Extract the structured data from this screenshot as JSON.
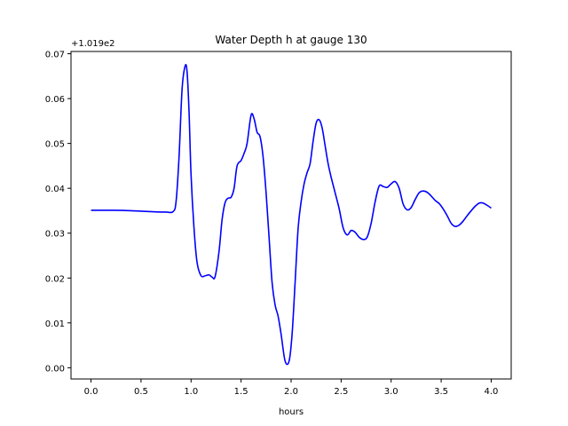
{
  "chart_data": {
    "type": "line",
    "title": "Water Depth h at gauge 130",
    "xlabel": "hours",
    "ylabel": "",
    "offset_label": "+1.019e2",
    "xlim": [
      -0.2,
      4.2
    ],
    "ylim": [
      -0.0025,
      0.0705
    ],
    "xticks": [
      0.0,
      0.5,
      1.0,
      1.5,
      2.0,
      2.5,
      3.0,
      3.5,
      4.0
    ],
    "xtick_labels": [
      "0.0",
      "0.5",
      "1.0",
      "1.5",
      "2.0",
      "2.5",
      "3.0",
      "3.5",
      "4.0"
    ],
    "yticks": [
      0.0,
      0.01,
      0.02,
      0.03,
      0.04,
      0.05,
      0.06,
      0.07
    ],
    "ytick_labels": [
      "0.00",
      "0.01",
      "0.02",
      "0.03",
      "0.04",
      "0.05",
      "0.06",
      "0.07"
    ],
    "grid": false,
    "series": [
      {
        "color": "#0000ff",
        "x": [
          0.0,
          0.2,
          0.4,
          0.6,
          0.75,
          0.82,
          0.85,
          0.88,
          0.91,
          0.94,
          0.96,
          0.98,
          1.0,
          1.03,
          1.06,
          1.1,
          1.14,
          1.18,
          1.21,
          1.24,
          1.28,
          1.31,
          1.34,
          1.37,
          1.4,
          1.43,
          1.46,
          1.5,
          1.53,
          1.56,
          1.6,
          1.63,
          1.66,
          1.69,
          1.72,
          1.75,
          1.78,
          1.81,
          1.84,
          1.87,
          1.9,
          1.94,
          1.98,
          2.01,
          2.04,
          2.07,
          2.1,
          2.13,
          2.16,
          2.19,
          2.22,
          2.25,
          2.28,
          2.31,
          2.34,
          2.37,
          2.4,
          2.44,
          2.48,
          2.52,
          2.56,
          2.6,
          2.64,
          2.68,
          2.72,
          2.76,
          2.8,
          2.84,
          2.88,
          2.92,
          2.96,
          3.0,
          3.04,
          3.08,
          3.12,
          3.16,
          3.2,
          3.24,
          3.28,
          3.32,
          3.36,
          3.4,
          3.44,
          3.48,
          3.52,
          3.56,
          3.6,
          3.64,
          3.68,
          3.72,
          3.76,
          3.8,
          3.84,
          3.88,
          3.92,
          3.96,
          4.0
        ],
        "y": [
          0.0351,
          0.0351,
          0.035,
          0.0348,
          0.0347,
          0.0348,
          0.037,
          0.047,
          0.062,
          0.0672,
          0.066,
          0.057,
          0.043,
          0.031,
          0.0235,
          0.0205,
          0.0205,
          0.0207,
          0.0202,
          0.0203,
          0.026,
          0.033,
          0.0368,
          0.0378,
          0.038,
          0.04,
          0.045,
          0.0462,
          0.0478,
          0.05,
          0.0563,
          0.0555,
          0.0525,
          0.0515,
          0.047,
          0.039,
          0.029,
          0.019,
          0.014,
          0.0115,
          0.0075,
          0.0015,
          0.0015,
          0.0075,
          0.019,
          0.031,
          0.037,
          0.041,
          0.0435,
          0.0455,
          0.0505,
          0.0545,
          0.0553,
          0.0535,
          0.0495,
          0.0455,
          0.0425,
          0.039,
          0.0355,
          0.0312,
          0.0296,
          0.0306,
          0.0302,
          0.0291,
          0.0286,
          0.0291,
          0.0322,
          0.037,
          0.0405,
          0.0404,
          0.0402,
          0.041,
          0.0415,
          0.04,
          0.0365,
          0.0352,
          0.0357,
          0.0375,
          0.039,
          0.0394,
          0.0391,
          0.0383,
          0.0373,
          0.0366,
          0.0354,
          0.0339,
          0.0322,
          0.0315,
          0.0318,
          0.0327,
          0.0339,
          0.035,
          0.036,
          0.0367,
          0.0367,
          0.0362,
          0.0356
        ]
      }
    ]
  }
}
